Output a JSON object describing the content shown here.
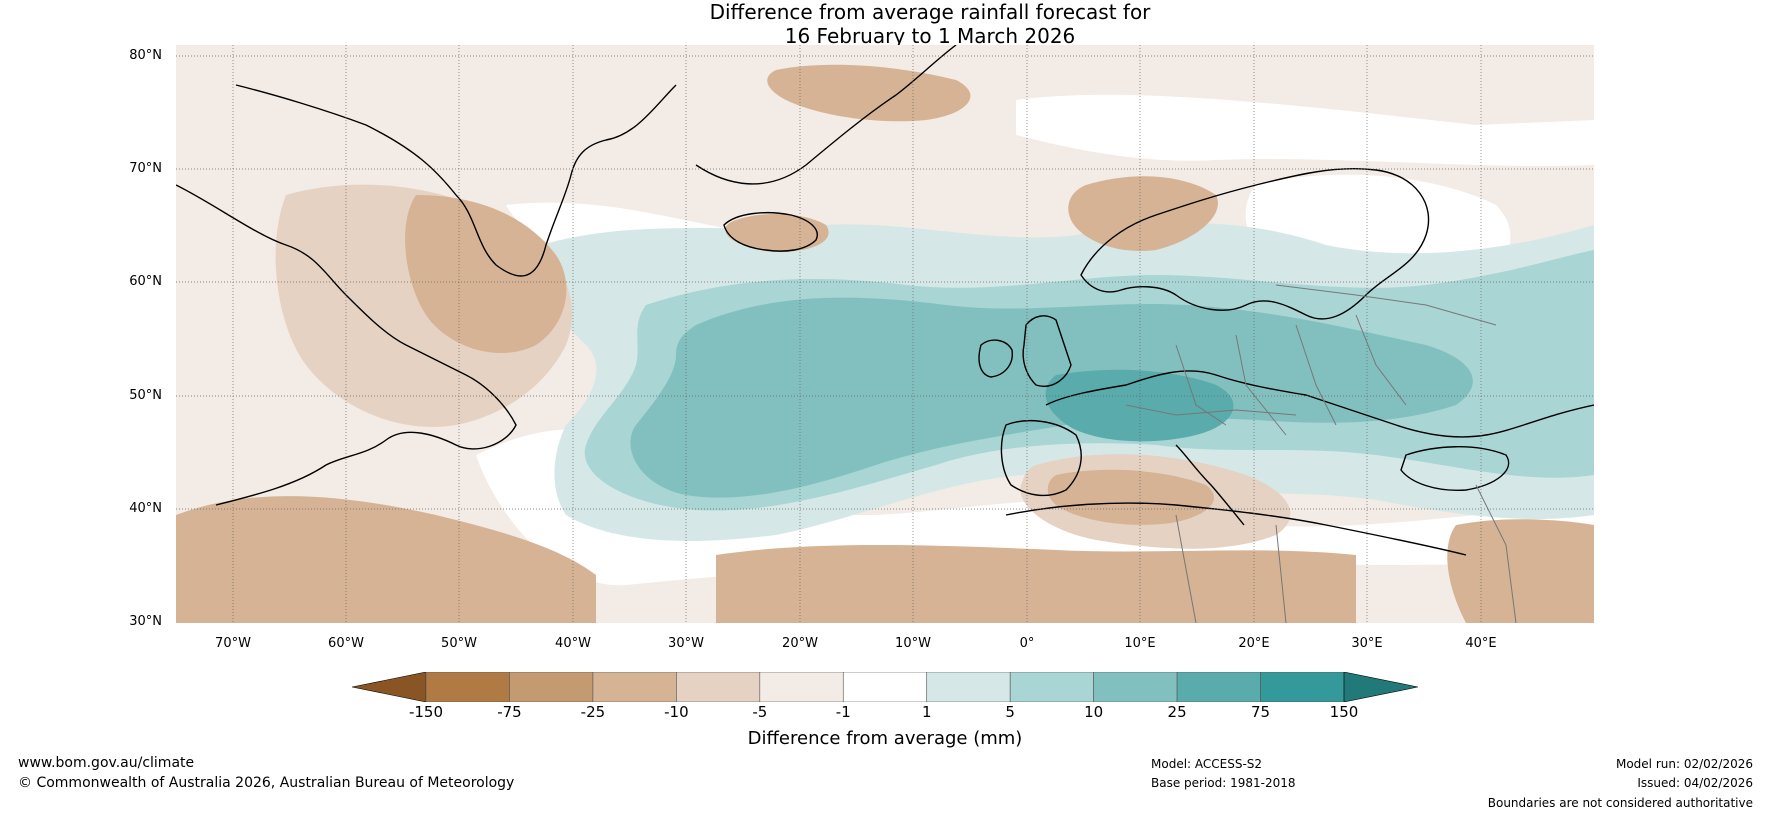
{
  "title": {
    "line1": "Difference from average rainfall forecast for",
    "line2": "16 February to 1 March 2026"
  },
  "map": {
    "region": "North Atlantic and Europe",
    "lat_labels": [
      "80°N",
      "70°N",
      "60°N",
      "50°N",
      "40°N",
      "30°N"
    ],
    "lon_labels": [
      "70°W",
      "60°W",
      "50°W",
      "40°W",
      "30°W",
      "20°W",
      "10°W",
      "0°",
      "10°E",
      "20°E",
      "30°E",
      "40°E"
    ]
  },
  "colorbar": {
    "ticks": [
      "-150",
      "-75",
      "-25",
      "-10",
      "-5",
      "-1",
      "1",
      "5",
      "10",
      "25",
      "75",
      "150"
    ],
    "colors": [
      "#8a5524",
      "#b07a45",
      "#c49a70",
      "#d5b394",
      "#e6d2c2",
      "#f3ebe5",
      "#ffffff",
      "#d5e8e7",
      "#a9d5d4",
      "#82c0bf",
      "#5aabab",
      "#34999a",
      "#217979"
    ],
    "label": "Difference from average (mm)"
  },
  "footer": {
    "website": "www.bom.gov.au/climate",
    "copyright": "© Commonwealth of Australia 2026, Australian Bureau of Meteorology",
    "model": "Model: ACCESS-S2",
    "base_period": "Base period: 1981-2018",
    "model_run": "Model run: 02/02/2026",
    "issued": "Issued: 04/02/2026",
    "disclaimer": "Boundaries are not considered authoritative"
  }
}
